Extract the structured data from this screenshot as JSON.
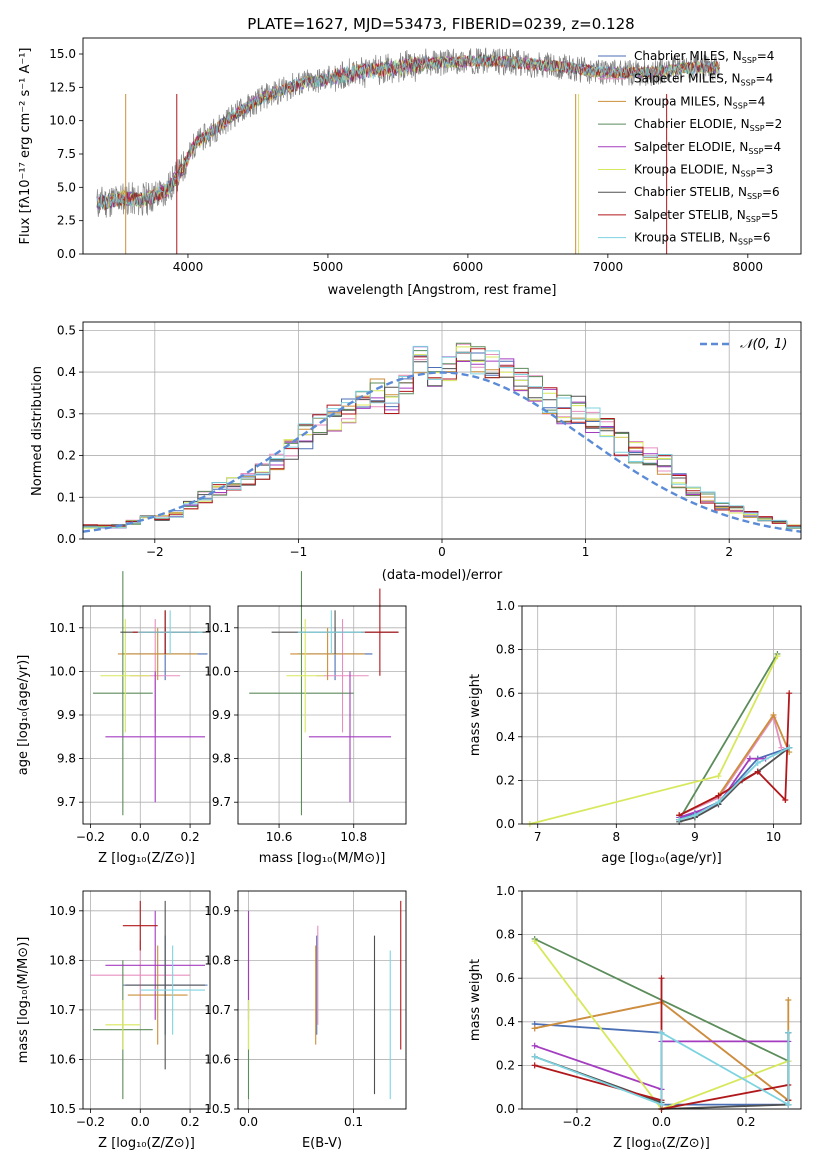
{
  "spectrum": {
    "title": "PLATE=1627, MJD=53473, FIBERID=0239, z=0.128",
    "xlabel": "wavelength [Angstrom, rest frame]",
    "ylabel": "Flux [fλ10⁻¹⁷ erg cm⁻² s⁻¹ A⁻¹]",
    "xlim": [
      3250,
      8380
    ],
    "ylim": [
      0,
      16.2
    ],
    "xticks": [
      "4000",
      "5000",
      "6000",
      "7000",
      "8000"
    ],
    "yticks": [
      "0.0",
      "2.5",
      "5.0",
      "7.5",
      "10.0",
      "12.5",
      "15.0"
    ],
    "legend": [
      {
        "name": "Chabrier MILES",
        "sub": "SSP",
        "n": "4",
        "color": "#4a6fb5"
      },
      {
        "name": "Salpeter MILES",
        "sub": "SSP",
        "n": "4",
        "color": "#e58fbf"
      },
      {
        "name": "Kroupa MILES",
        "sub": "SSP",
        "n": "4",
        "color": "#cc8f3a"
      },
      {
        "name": "Chabrier ELODIE",
        "sub": "SSP",
        "n": "2",
        "color": "#5b8c5a"
      },
      {
        "name": "Salpeter ELODIE",
        "sub": "SSP",
        "n": "4",
        "color": "#a43cc0"
      },
      {
        "name": "Kroupa ELODIE",
        "sub": "SSP",
        "n": "3",
        "color": "#d8e85c"
      },
      {
        "name": "Chabrier STELIB",
        "sub": "SSP",
        "n": "6",
        "color": "#505050"
      },
      {
        "name": "Salpeter STELIB",
        "sub": "SSP",
        "n": "5",
        "color": "#b0181b"
      },
      {
        "name": "Kroupa STELIB",
        "sub": "SSP",
        "n": "6",
        "color": "#7dd3e0"
      }
    ],
    "data_color": "#808080"
  },
  "chart_data": [
    {
      "type": "line",
      "title": "PLATE=1627, MJD=53473, FIBERID=0239, z=0.128",
      "xlabel": "wavelength [Angstrom, rest frame]",
      "ylabel": "Flux [fλ10⁻¹⁷ erg cm⁻² s⁻¹ A⁻¹]",
      "xlim": [
        3250,
        8380
      ],
      "ylim": [
        0,
        16.2
      ],
      "continuum": {
        "x": [
          3350,
          3450,
          3550,
          3650,
          3750,
          3850,
          3950,
          4050,
          4150,
          4250,
          4350,
          4450,
          4550,
          4650,
          4750,
          4850,
          4950,
          5100,
          5300,
          5500,
          5700,
          5900,
          6100,
          6300,
          6500,
          6700,
          6900,
          7100,
          7300,
          7500,
          7700,
          7800
        ],
        "y": [
          3.8,
          4.0,
          4.2,
          4.0,
          4.3,
          4.8,
          6.2,
          8.3,
          9.0,
          9.8,
          10.6,
          11.2,
          11.8,
          12.2,
          12.6,
          12.9,
          13.0,
          13.4,
          13.8,
          14.0,
          14.3,
          14.4,
          14.5,
          14.4,
          14.2,
          14.0,
          13.7,
          13.6,
          13.6,
          13.9,
          14.0,
          14.0
        ]
      },
      "legend": [
        "Chabrier MILES N_SSP=4",
        "Salpeter MILES N_SSP=4",
        "Kroupa MILES N_SSP=4",
        "Chabrier ELODIE N_SSP=2",
        "Salpeter ELODIE N_SSP=4",
        "Kroupa ELODIE N_SSP=3",
        "Chabrier STELIB N_SSP=6",
        "Salpeter STELIB N_SSP=5",
        "Kroupa STELIB N_SSP=6"
      ]
    },
    {
      "type": "line",
      "xlabel": "(data-model)/error",
      "ylabel": "Normed distribution",
      "xlim": [
        -2.5,
        2.5
      ],
      "ylim": [
        0,
        0.52
      ],
      "xticks": [
        "-2",
        "-1",
        "0",
        "1",
        "2"
      ],
      "yticks": [
        "0.0",
        "0.1",
        "0.2",
        "0.3",
        "0.4",
        "0.5"
      ],
      "legend": "𝒩(0, 1)",
      "bin_width": 0.1,
      "x_start": -2.5,
      "hist": [
        0.03,
        0.03,
        0.03,
        0.04,
        0.05,
        0.05,
        0.06,
        0.08,
        0.1,
        0.12,
        0.13,
        0.14,
        0.16,
        0.18,
        0.22,
        0.25,
        0.27,
        0.29,
        0.31,
        0.34,
        0.35,
        0.33,
        0.36,
        0.43,
        0.39,
        0.41,
        0.44,
        0.43,
        0.42,
        0.41,
        0.38,
        0.36,
        0.33,
        0.31,
        0.31,
        0.29,
        0.28,
        0.23,
        0.21,
        0.2,
        0.18,
        0.14,
        0.12,
        0.1,
        0.08,
        0.07,
        0.06,
        0.05,
        0.04,
        0.03
      ]
    },
    {
      "type": "scatter",
      "xlabel": "Z [log₁₀(Z/Z⊙)]",
      "ylabel": "age  [log₁₀(age/yr)]",
      "xlim": [
        -0.23,
        0.28
      ],
      "ylim": [
        9.65,
        10.15
      ],
      "xticks": [
        "-0.2",
        "0.0",
        "0.2"
      ],
      "yticks": [
        "9.7",
        "9.8",
        "9.9",
        "10.0",
        "10.1"
      ],
      "points": [
        {
          "x": 0.1,
          "y": 10.04,
          "xerr": 0.17,
          "yerr": 0.06,
          "c": 0
        },
        {
          "x": 0.06,
          "y": 9.99,
          "xerr": 0.1,
          "yerr": 0.13,
          "c": 1
        },
        {
          "x": 0.07,
          "y": 10.04,
          "xerr": 0.16,
          "yerr": 0.06,
          "c": 2
        },
        {
          "x": -0.07,
          "y": 9.95,
          "xerr": 0.12,
          "yerr": 0.28,
          "c": 3
        },
        {
          "x": 0.06,
          "y": 9.85,
          "xerr": 0.2,
          "yerr": 0.15,
          "c": 4
        },
        {
          "x": -0.06,
          "y": 9.99,
          "xerr": 0.1,
          "yerr": 0.13,
          "c": 5
        },
        {
          "x": 0.1,
          "y": 10.09,
          "xerr": 0.18,
          "yerr": 0.05,
          "c": 6
        },
        {
          "x": 0.1,
          "y": 10.09,
          "xerr": 0.13,
          "yerr": 0.05,
          "c": 7
        },
        {
          "x": 0.12,
          "y": 10.09,
          "xerr": 0.13,
          "yerr": 0.05,
          "c": 8
        }
      ]
    },
    {
      "type": "scatter",
      "xlabel": "mass [log₁₀(M/M⊙)]",
      "xlim": [
        10.49,
        10.94
      ],
      "ylim": [
        9.65,
        10.15
      ],
      "xticks": [
        "10.6",
        "10.8"
      ],
      "yticks": [
        "9.7",
        "9.8",
        "9.9",
        "10.0",
        "10.1"
      ],
      "points": [
        {
          "x": 10.75,
          "y": 10.04,
          "xerr": 0.1,
          "yerr": 0.06,
          "c": 0
        },
        {
          "x": 10.77,
          "y": 9.99,
          "xerr": 0.07,
          "yerr": 0.13,
          "c": 1
        },
        {
          "x": 10.73,
          "y": 10.04,
          "xerr": 0.1,
          "yerr": 0.06,
          "c": 2
        },
        {
          "x": 10.66,
          "y": 9.95,
          "xerr": 0.14,
          "yerr": 0.28,
          "c": 3
        },
        {
          "x": 10.79,
          "y": 9.85,
          "xerr": 0.11,
          "yerr": 0.15,
          "c": 4
        },
        {
          "x": 10.67,
          "y": 9.99,
          "xerr": 0.05,
          "yerr": 0.13,
          "c": 5
        },
        {
          "x": 10.75,
          "y": 10.09,
          "xerr": 0.17,
          "yerr": 0.05,
          "c": 6
        },
        {
          "x": 10.87,
          "y": 10.09,
          "xerr": 0.05,
          "yerr": 0.1,
          "c": 7
        },
        {
          "x": 10.74,
          "y": 10.09,
          "xerr": 0.09,
          "yerr": 0.05,
          "c": 8
        }
      ]
    },
    {
      "type": "line",
      "xlabel": "age  [log₁₀(age/yr)]",
      "ylabel": "mass weight",
      "xlim": [
        6.8,
        10.35
      ],
      "ylim": [
        0,
        1.0
      ],
      "xticks": [
        "7",
        "8",
        "9",
        "10"
      ],
      "yticks": [
        "0.0",
        "0.2",
        "0.4",
        "0.6",
        "0.8",
        "1.0"
      ],
      "series": [
        {
          "c": 0,
          "x": [
            8.8,
            9.0,
            9.3,
            9.8,
            10.2
          ],
          "y": [
            0.02,
            0.05,
            0.1,
            0.3,
            0.35
          ]
        },
        {
          "c": 1,
          "x": [
            8.8,
            9.3,
            10.0,
            10.1
          ],
          "y": [
            0.04,
            0.12,
            0.49,
            0.35
          ]
        },
        {
          "c": 2,
          "x": [
            8.8,
            9.3,
            10.0,
            10.2
          ],
          "y": [
            0.04,
            0.13,
            0.5,
            0.33
          ]
        },
        {
          "c": 3,
          "x": [
            8.8,
            10.05
          ],
          "y": [
            0.02,
            0.78
          ]
        },
        {
          "c": 4,
          "x": [
            8.8,
            9.3,
            9.7,
            9.9
          ],
          "y": [
            0.03,
            0.09,
            0.3,
            0.3
          ]
        },
        {
          "c": 5,
          "x": [
            6.9,
            9.3,
            10.05
          ],
          "y": [
            0.0,
            0.22,
            0.77
          ]
        },
        {
          "c": 6,
          "x": [
            8.8,
            9.0,
            9.3,
            9.6,
            9.8,
            10.2
          ],
          "y": [
            0.01,
            0.03,
            0.09,
            0.2,
            0.24,
            0.35
          ]
        },
        {
          "c": 7,
          "x": [
            8.8,
            9.3,
            9.8,
            10.15,
            10.2
          ],
          "y": [
            0.04,
            0.13,
            0.24,
            0.11,
            0.6
          ]
        },
        {
          "c": 8,
          "x": [
            8.8,
            9.0,
            9.3,
            9.8,
            10.2
          ],
          "y": [
            0.02,
            0.04,
            0.1,
            0.28,
            0.35
          ]
        }
      ]
    },
    {
      "type": "scatter",
      "xlabel": "Z [log₁₀(Z/Z⊙)]",
      "ylabel": "mass [log₁₀(M/M⊙)]",
      "xlim": [
        -0.23,
        0.28
      ],
      "ylim": [
        10.5,
        10.94
      ],
      "xticks": [
        "-0.2",
        "0.0",
        "0.2"
      ],
      "yticks": [
        "10.5",
        "10.6",
        "10.7",
        "10.8",
        "10.9"
      ],
      "points": [
        {
          "x": 0.1,
          "y": 10.75,
          "xerr": 0.17,
          "yerr": 0.1,
          "c": 0
        },
        {
          "x": 0.0,
          "y": 10.77,
          "xerr": 0.2,
          "yerr": 0.07,
          "c": 1
        },
        {
          "x": 0.07,
          "y": 10.73,
          "xerr": 0.12,
          "yerr": 0.1,
          "c": 2
        },
        {
          "x": -0.07,
          "y": 10.66,
          "xerr": 0.12,
          "yerr": 0.14,
          "c": 3
        },
        {
          "x": 0.06,
          "y": 10.79,
          "xerr": 0.2,
          "yerr": 0.11,
          "c": 4
        },
        {
          "x": -0.07,
          "y": 10.67,
          "xerr": 0.07,
          "yerr": 0.05,
          "c": 5
        },
        {
          "x": 0.1,
          "y": 10.75,
          "xerr": 0.16,
          "yerr": 0.17,
          "c": 6
        },
        {
          "x": 0.0,
          "y": 10.87,
          "xerr": 0.07,
          "yerr": 0.05,
          "c": 7
        },
        {
          "x": 0.13,
          "y": 10.74,
          "xerr": 0.13,
          "yerr": 0.09,
          "c": 8
        }
      ]
    },
    {
      "type": "scatter",
      "xlabel": "E(B-V)",
      "xlim": [
        -0.01,
        0.15
      ],
      "ylim": [
        10.5,
        10.94
      ],
      "xticks": [
        "0.0",
        "0.1"
      ],
      "yticks": [
        "10.5",
        "10.6",
        "10.7",
        "10.8",
        "10.9"
      ],
      "points": [
        {
          "x": 0.065,
          "y": 10.75,
          "yerr": 0.1,
          "c": 0
        },
        {
          "x": 0.066,
          "y": 10.77,
          "yerr": 0.1,
          "c": 1
        },
        {
          "x": 0.064,
          "y": 10.73,
          "yerr": 0.1,
          "c": 2
        },
        {
          "x": 0.0,
          "y": 10.66,
          "yerr": 0.14,
          "c": 3
        },
        {
          "x": 0.0,
          "y": 10.79,
          "yerr": 0.11,
          "c": 4
        },
        {
          "x": 0.0,
          "y": 10.67,
          "yerr": 0.05,
          "c": 5
        },
        {
          "x": 0.12,
          "y": 10.69,
          "yerr": 0.16,
          "c": 6
        },
        {
          "x": 0.145,
          "y": 10.77,
          "yerr": 0.15,
          "c": 7
        },
        {
          "x": 0.135,
          "y": 10.67,
          "yerr": 0.15,
          "c": 8
        }
      ]
    },
    {
      "type": "line",
      "xlabel": "Z [log₁₀(Z/Z⊙)]",
      "ylabel": "mass weight",
      "xlim": [
        -0.33,
        0.33
      ],
      "ylim": [
        0,
        1.0
      ],
      "xticks": [
        "-0.2",
        "0.0",
        "0.2"
      ],
      "yticks": [
        "0.0",
        "0.2",
        "0.4",
        "0.6",
        "0.8",
        "1.0"
      ],
      "series": [
        {
          "c": 0,
          "x": [
            -0.3,
            0.0,
            0.0,
            0.3,
            0.3
          ],
          "y": [
            0.39,
            0.35,
            0.02,
            0.02,
            0.35
          ]
        },
        {
          "c": 1,
          "x": [
            -0.3,
            0.0,
            0.3
          ],
          "y": [
            0.37,
            0.49,
            0.04
          ]
        },
        {
          "c": 2,
          "x": [
            -0.3,
            0.0,
            0.3,
            0.3
          ],
          "y": [
            0.37,
            0.49,
            0.04,
            0.5
          ]
        },
        {
          "c": 3,
          "x": [
            -0.3,
            0.3
          ],
          "y": [
            0.78,
            0.22
          ]
        },
        {
          "c": 4,
          "x": [
            -0.3,
            0.0,
            0.0,
            0.3
          ],
          "y": [
            0.29,
            0.09,
            0.31,
            0.31
          ]
        },
        {
          "c": 5,
          "x": [
            -0.3,
            0.0,
            0.3
          ],
          "y": [
            0.77,
            0.0,
            0.22
          ]
        },
        {
          "c": 6,
          "x": [
            -0.3,
            0.0,
            0.0,
            0.3,
            0.3
          ],
          "y": [
            0.24,
            0.03,
            0.0,
            0.02,
            0.35
          ]
        },
        {
          "c": 7,
          "x": [
            -0.3,
            0.0,
            0.0,
            0.0,
            0.3,
            0.3
          ],
          "y": [
            0.2,
            0.04,
            0.6,
            0.0,
            0.11,
            0.04
          ]
        },
        {
          "c": 8,
          "x": [
            -0.3,
            0.0,
            0.0,
            0.3,
            0.3
          ],
          "y": [
            0.24,
            0.02,
            0.35,
            0.02,
            0.35
          ]
        }
      ]
    }
  ]
}
